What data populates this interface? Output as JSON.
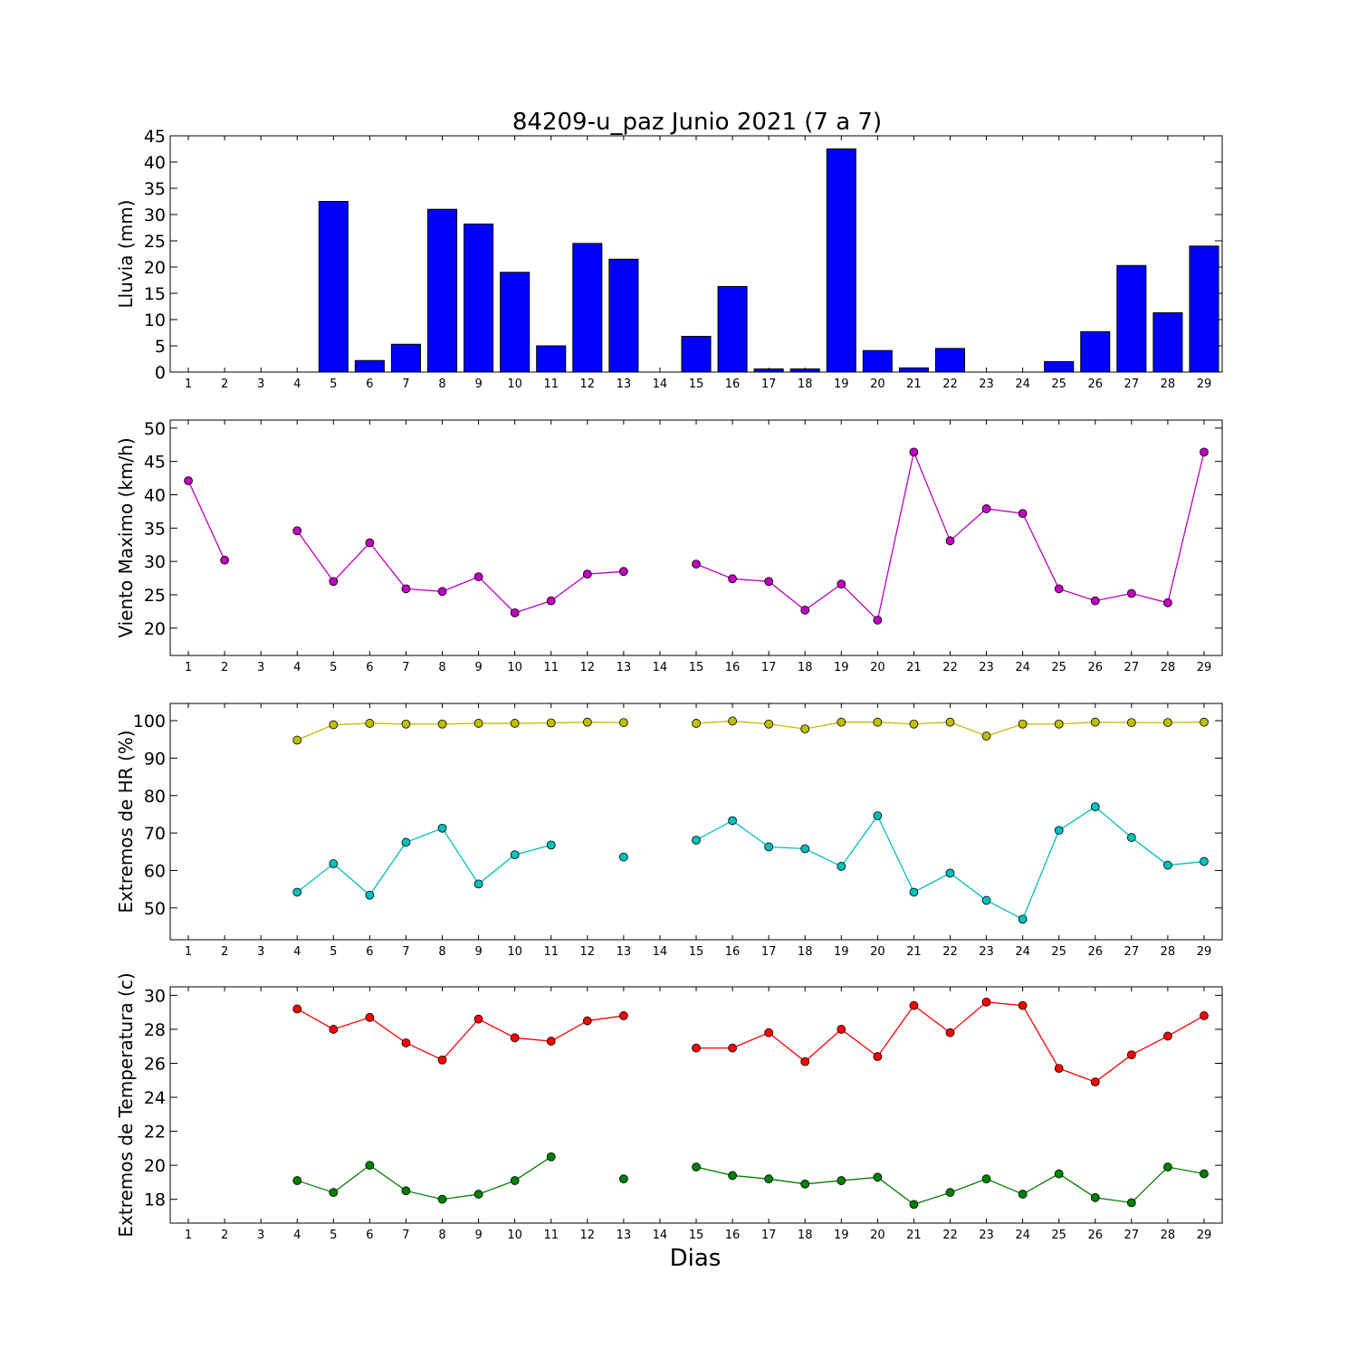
{
  "chart_data": [
    {
      "type": "bar",
      "title": "84209-u_paz Junio 2021  (7 a 7)",
      "ylabel": "Lluvia (mm)",
      "xlabel": "",
      "ylim": [
        0,
        45
      ],
      "yticks": [
        0,
        5,
        10,
        15,
        20,
        25,
        30,
        35,
        40,
        45
      ],
      "categories": [
        1,
        2,
        3,
        4,
        5,
        6,
        7,
        8,
        9,
        10,
        11,
        12,
        13,
        14,
        15,
        16,
        17,
        18,
        19,
        20,
        21,
        22,
        23,
        24,
        25,
        26,
        27,
        28,
        29
      ],
      "series": [
        {
          "color": "#0000ff",
          "values": [
            0,
            0,
            0,
            0,
            32.5,
            2.2,
            5.3,
            31,
            28.2,
            19,
            5,
            24.5,
            21.5,
            null,
            6.8,
            16.3,
            0.6,
            0.6,
            42.5,
            4.1,
            0.8,
            4.5,
            0,
            0,
            2,
            7.7,
            20.3,
            11.3,
            24
          ]
        }
      ]
    },
    {
      "type": "line",
      "title": "",
      "ylabel": "Viento Maximo (km/h)",
      "xlabel": "",
      "ylim": [
        15.9,
        51.2
      ],
      "yticks": [
        20,
        25,
        30,
        35,
        40,
        45,
        50
      ],
      "categories": [
        1,
        2,
        3,
        4,
        5,
        6,
        7,
        8,
        9,
        10,
        11,
        12,
        13,
        14,
        15,
        16,
        17,
        18,
        19,
        20,
        21,
        22,
        23,
        24,
        25,
        26,
        27,
        28,
        29
      ],
      "series": [
        {
          "color": "#bf00bf",
          "values": [
            42.1,
            30.2,
            null,
            34.6,
            27,
            32.8,
            25.9,
            25.5,
            27.7,
            22.3,
            24.1,
            28.1,
            28.5,
            null,
            29.6,
            27.4,
            27,
            22.7,
            26.6,
            21.2,
            46.4,
            33.1,
            37.9,
            37.2,
            25.9,
            24.1,
            25.2,
            23.8,
            46.4
          ]
        }
      ]
    },
    {
      "type": "line",
      "title": "",
      "ylabel": "Extremos de HR (%)",
      "xlabel": "",
      "ylim": [
        41.5,
        104.6
      ],
      "yticks": [
        50,
        60,
        70,
        80,
        90,
        100
      ],
      "categories": [
        1,
        2,
        3,
        4,
        5,
        6,
        7,
        8,
        9,
        10,
        11,
        12,
        13,
        14,
        15,
        16,
        17,
        18,
        19,
        20,
        21,
        22,
        23,
        24,
        25,
        26,
        27,
        28,
        29
      ],
      "series": [
        {
          "color": "#bfbf00",
          "values": [
            null,
            null,
            null,
            94.8,
            98.9,
            99.3,
            99.1,
            99.1,
            99.3,
            99.3,
            99.4,
            99.6,
            99.5,
            null,
            99.3,
            99.9,
            99.1,
            97.8,
            99.6,
            99.6,
            99.1,
            99.6,
            95.9,
            99.1,
            99.1,
            99.6,
            99.5,
            99.5,
            99.6
          ]
        },
        {
          "color": "#00bfbf",
          "values": [
            null,
            null,
            null,
            54.2,
            61.8,
            53.4,
            67.5,
            71.3,
            56.4,
            64.2,
            66.8,
            null,
            63.6,
            null,
            68.1,
            73.3,
            66.3,
            65.8,
            61.1,
            74.6,
            54.2,
            59.3,
            52,
            47,
            70.7,
            77,
            68.8,
            61.4,
            62.4
          ]
        }
      ]
    },
    {
      "type": "line",
      "title": "",
      "ylabel": "Extremos de Temperatura (c)",
      "xlabel": "Dias",
      "ylim": [
        16.6,
        30.5
      ],
      "yticks": [
        18,
        20,
        22,
        24,
        26,
        28,
        30
      ],
      "categories": [
        1,
        2,
        3,
        4,
        5,
        6,
        7,
        8,
        9,
        10,
        11,
        12,
        13,
        14,
        15,
        16,
        17,
        18,
        19,
        20,
        21,
        22,
        23,
        24,
        25,
        26,
        27,
        28,
        29
      ],
      "series": [
        {
          "color": "#ff0000",
          "values": [
            null,
            null,
            null,
            29.2,
            28,
            28.7,
            27.2,
            26.2,
            28.6,
            27.5,
            27.3,
            28.5,
            28.8,
            null,
            26.9,
            26.9,
            27.8,
            26.1,
            28,
            26.4,
            29.4,
            27.8,
            29.6,
            29.4,
            25.7,
            24.9,
            26.5,
            27.6,
            28.8
          ]
        },
        {
          "color": "#008000",
          "values": [
            null,
            null,
            null,
            19.1,
            18.4,
            20,
            18.5,
            18,
            18.3,
            19.1,
            20.5,
            null,
            19.2,
            null,
            19.9,
            19.4,
            19.2,
            18.9,
            19.1,
            19.3,
            17.7,
            18.4,
            19.2,
            18.3,
            19.5,
            18.1,
            17.8,
            19.9,
            19.5
          ]
        }
      ]
    }
  ]
}
